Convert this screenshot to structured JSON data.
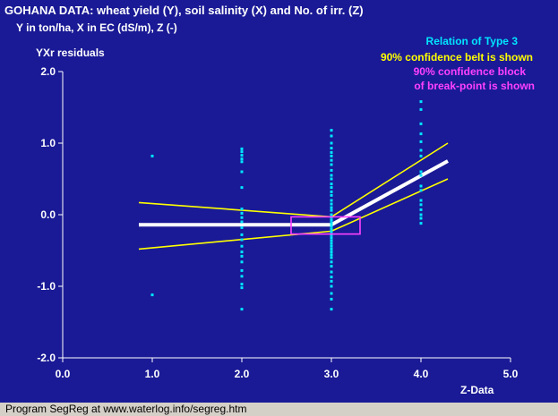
{
  "header": {
    "title": "GOHANA DATA: wheat yield (Y), soil salinity (X) and No. of irr. (Z)",
    "units": "Y in ton/ha, X in EC (dS/m), Z (-)"
  },
  "legend": {
    "relation": "Relation of Type 3",
    "belt": "90% confidence belt is shown",
    "block_line1": "90% confidence block",
    "block_line2": "of break-point is shown"
  },
  "footer": {
    "text": "Program SegReg at www.waterlog.info/segreg.htm"
  },
  "colors": {
    "plot_bg": "#1a1a96",
    "points": "#00e5ff",
    "regression": "#ffffff",
    "belt": "#ffff00",
    "block": "#ff40ff",
    "text": "#ffffff",
    "window_bg": "#d4d0c8"
  },
  "chart_data": {
    "type": "scatter",
    "ylabel": "YXr residuals",
    "xlabel": "Z-Data",
    "xlim": [
      0,
      5
    ],
    "ylim": [
      -2,
      2
    ],
    "x_ticks": [
      "0.0",
      "1.0",
      "2.0",
      "3.0",
      "4.0",
      "5.0"
    ],
    "y_ticks": [
      "2.0",
      "1.0",
      "0.0",
      "-1.0",
      "-2.0"
    ],
    "y_tick_values": [
      2,
      1,
      0,
      -1,
      -2
    ],
    "x_tick_values": [
      0,
      1,
      2,
      3,
      4,
      5
    ],
    "points": [
      [
        1,
        0.82
      ],
      [
        1,
        -1.12
      ],
      [
        2,
        0.92
      ],
      [
        2,
        0.88
      ],
      [
        2,
        0.83
      ],
      [
        2,
        0.78
      ],
      [
        2,
        0.74
      ],
      [
        2,
        0.6
      ],
      [
        2,
        0.38
      ],
      [
        2,
        0.08
      ],
      [
        2,
        0.02
      ],
      [
        2,
        -0.04
      ],
      [
        2,
        -0.1
      ],
      [
        2,
        -0.18
      ],
      [
        2,
        -0.28
      ],
      [
        2,
        -0.35
      ],
      [
        2,
        -0.44
      ],
      [
        2,
        -0.52
      ],
      [
        2,
        -0.58
      ],
      [
        2,
        -0.66
      ],
      [
        2,
        -0.78
      ],
      [
        2,
        -0.86
      ],
      [
        2,
        -0.97
      ],
      [
        2,
        -1.02
      ],
      [
        2,
        -1.32
      ],
      [
        3,
        1.18
      ],
      [
        3,
        1.1
      ],
      [
        3,
        1.0
      ],
      [
        3,
        0.93
      ],
      [
        3,
        0.87
      ],
      [
        3,
        0.82
      ],
      [
        3,
        0.76
      ],
      [
        3,
        0.7
      ],
      [
        3,
        0.62
      ],
      [
        3,
        0.55
      ],
      [
        3,
        0.5
      ],
      [
        3,
        0.43
      ],
      [
        3,
        0.38
      ],
      [
        3,
        0.32
      ],
      [
        3,
        0.27
      ],
      [
        3,
        0.2
      ],
      [
        3,
        0.15
      ],
      [
        3,
        0.1
      ],
      [
        3,
        0.06
      ],
      [
        3,
        0.0
      ],
      [
        3,
        -0.04
      ],
      [
        3,
        -0.08
      ],
      [
        3,
        -0.12
      ],
      [
        3,
        -0.16
      ],
      [
        3,
        -0.2
      ],
      [
        3,
        -0.24
      ],
      [
        3,
        -0.28
      ],
      [
        3,
        -0.32
      ],
      [
        3,
        -0.36
      ],
      [
        3,
        -0.4
      ],
      [
        3,
        -0.44
      ],
      [
        3,
        -0.48
      ],
      [
        3,
        -0.52
      ],
      [
        3,
        -0.56
      ],
      [
        3,
        -0.6
      ],
      [
        3,
        -0.66
      ],
      [
        3,
        -0.72
      ],
      [
        3,
        -0.8
      ],
      [
        3,
        -0.87
      ],
      [
        3,
        -0.93
      ],
      [
        3,
        -1.0
      ],
      [
        3,
        -1.1
      ],
      [
        3,
        -1.18
      ],
      [
        3,
        -1.32
      ],
      [
        4,
        1.58
      ],
      [
        4,
        1.47
      ],
      [
        4,
        1.27
      ],
      [
        4,
        1.13
      ],
      [
        4,
        1.02
      ],
      [
        4,
        0.9
      ],
      [
        4,
        0.82
      ],
      [
        4,
        0.6
      ],
      [
        4,
        0.55
      ],
      [
        4,
        0.4
      ],
      [
        4,
        0.34
      ],
      [
        4,
        0.2
      ],
      [
        4,
        0.14
      ],
      [
        4,
        0.07
      ],
      [
        4,
        0.0
      ],
      [
        4,
        -0.05
      ],
      [
        4,
        -0.12
      ]
    ],
    "regression": [
      [
        0.85,
        -0.14
      ],
      [
        3.0,
        -0.14
      ],
      [
        4.3,
        0.75
      ]
    ],
    "belt_upper": [
      [
        0.85,
        0.17
      ],
      [
        3.0,
        -0.03
      ],
      [
        4.3,
        1.0
      ]
    ],
    "belt_lower": [
      [
        0.85,
        -0.48
      ],
      [
        3.0,
        -0.23
      ],
      [
        4.3,
        0.5
      ]
    ],
    "breakpoint_block": {
      "x_range": [
        2.55,
        3.32
      ],
      "y_range": [
        -0.27,
        -0.03
      ]
    }
  }
}
